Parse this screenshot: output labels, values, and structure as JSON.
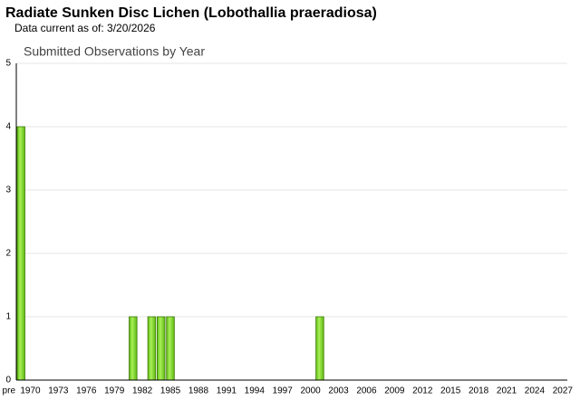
{
  "chart_data": {
    "type": "bar",
    "title": "Radiate Sunken Disc Lichen   (Lobothallia praeradiosa)",
    "subtitle": "Data current as of: 3/20/2026",
    "chart_title": "Submitted Observations by Year",
    "categories": [
      "pre",
      "1970",
      null,
      null,
      "1973",
      null,
      null,
      "1976",
      null,
      null,
      "1979",
      null,
      null,
      "1982",
      null,
      null,
      "1985",
      null,
      null,
      "1988",
      null,
      null,
      "1991",
      null,
      null,
      "1994",
      null,
      null,
      "1997",
      null,
      null,
      "2000",
      null,
      null,
      "2003",
      null,
      null,
      "2006",
      null,
      null,
      "2009",
      null,
      null,
      "2012",
      null,
      null,
      "2015",
      null,
      null,
      "2018",
      null,
      null,
      "2021",
      null,
      null,
      "2024",
      null,
      null,
      "2027"
    ],
    "values": [
      4,
      0,
      0,
      0,
      0,
      0,
      0,
      0,
      0,
      0,
      0,
      0,
      1,
      0,
      1,
      1,
      1,
      0,
      0,
      0,
      0,
      0,
      0,
      0,
      0,
      0,
      0,
      0,
      0,
      0,
      0,
      0,
      1,
      0,
      0,
      0,
      0,
      0,
      0,
      0,
      0,
      0,
      0,
      0,
      0,
      0,
      0,
      0,
      0,
      0,
      0,
      0,
      0,
      0,
      0,
      0,
      0,
      0,
      0
    ],
    "color": "#7ed321",
    "ylim": [
      0,
      5
    ],
    "yticks": [
      0,
      1,
      2,
      3,
      4,
      5
    ],
    "grid": true
  }
}
